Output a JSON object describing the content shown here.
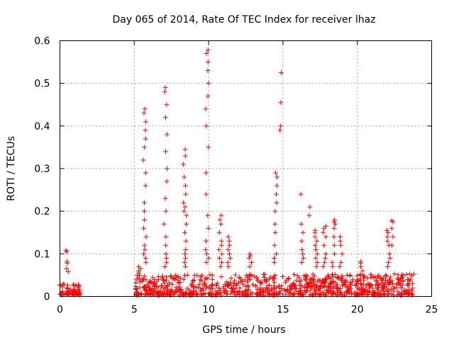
{
  "chart_data": {
    "type": "scatter",
    "title": "Day 065 of 2014, Rate Of TEC Index for receiver lhaz",
    "xlabel": "GPS time / hours",
    "ylabel": "ROTI / TECUs",
    "xlim": [
      0,
      25
    ],
    "ylim": [
      0,
      0.6
    ],
    "grid": true,
    "marker": "+",
    "color": "#ff0000",
    "xticks": [
      "0",
      "5",
      "10",
      "15",
      "20",
      "25"
    ],
    "yticks": [
      "0",
      "0.1",
      "0.2",
      "0.3",
      "0.4",
      "0.5",
      "0.6"
    ],
    "x_tick_values": [
      0,
      5,
      10,
      15,
      20,
      25
    ],
    "y_tick_values": [
      0,
      0.1,
      0.2,
      0.3,
      0.4,
      0.5,
      0.6
    ],
    "background_bands": [
      {
        "x_start": 0.0,
        "x_end": 1.4,
        "y_max": 0.028
      },
      {
        "x_start": 5.1,
        "x_end": 23.8,
        "y_max": 0.05
      }
    ],
    "spikes": [
      {
        "x": 0.5,
        "values": [
          0.108,
          0.105,
          0.082,
          0.078,
          0.065,
          0.058
        ]
      },
      {
        "x": 5.35,
        "values": [
          0.07,
          0.065,
          0.06,
          0.055,
          0.05
        ]
      },
      {
        "x": 5.7,
        "values": [
          0.44,
          0.43,
          0.41,
          0.39,
          0.37,
          0.35,
          0.32,
          0.29,
          0.26,
          0.22,
          0.2,
          0.18,
          0.16,
          0.14,
          0.12,
          0.11,
          0.1,
          0.09,
          0.08
        ]
      },
      {
        "x": 7.1,
        "values": [
          0.49,
          0.48,
          0.45,
          0.42,
          0.38,
          0.34,
          0.3,
          0.27,
          0.23,
          0.2,
          0.17,
          0.14,
          0.12,
          0.1,
          0.09,
          0.08,
          0.07
        ]
      },
      {
        "x": 8.4,
        "values": [
          0.345,
          0.33,
          0.31,
          0.28,
          0.26,
          0.24,
          0.22,
          0.21,
          0.2,
          0.19,
          0.17,
          0.15,
          0.13,
          0.11,
          0.1,
          0.09,
          0.08,
          0.07
        ]
      },
      {
        "x": 9.9,
        "values": [
          0.578,
          0.57,
          0.55,
          0.53,
          0.5,
          0.47,
          0.44,
          0.4,
          0.35,
          0.29,
          0.24,
          0.19,
          0.16,
          0.13,
          0.11,
          0.1,
          0.09,
          0.08
        ]
      },
      {
        "x": 10.8,
        "values": [
          0.19,
          0.18,
          0.17,
          0.15,
          0.13,
          0.12,
          0.11,
          0.1,
          0.09,
          0.08,
          0.07
        ]
      },
      {
        "x": 11.4,
        "values": [
          0.14,
          0.13,
          0.12,
          0.11,
          0.1,
          0.09,
          0.08,
          0.07
        ]
      },
      {
        "x": 12.8,
        "values": [
          0.1,
          0.095,
          0.09,
          0.08,
          0.07
        ]
      },
      {
        "x": 14.5,
        "values": [
          0.29,
          0.28,
          0.26,
          0.24,
          0.22,
          0.2,
          0.17,
          0.15,
          0.12,
          0.1,
          0.09,
          0.08
        ]
      },
      {
        "x": 14.8,
        "values": [
          0.525,
          0.455,
          0.4,
          0.39
        ]
      },
      {
        "x": 16.3,
        "values": [
          0.24,
          0.17,
          0.15,
          0.13,
          0.11,
          0.1,
          0.09,
          0.08
        ]
      },
      {
        "x": 16.8,
        "values": [
          0.21,
          0.19
        ]
      },
      {
        "x": 17.2,
        "values": [
          0.155,
          0.15,
          0.14,
          0.13,
          0.12,
          0.11,
          0.1,
          0.09,
          0.08,
          0.07
        ]
      },
      {
        "x": 17.8,
        "values": [
          0.165,
          0.16,
          0.15,
          0.14,
          0.12,
          0.1,
          0.09,
          0.08,
          0.07
        ]
      },
      {
        "x": 18.4,
        "values": [
          0.18,
          0.175,
          0.17,
          0.16,
          0.14,
          0.12,
          0.1,
          0.08,
          0.07
        ]
      },
      {
        "x": 18.9,
        "values": [
          0.14,
          0.13,
          0.12,
          0.1,
          0.08,
          0.07
        ]
      },
      {
        "x": 20.3,
        "values": [
          0.082,
          0.078,
          0.07,
          0.06,
          0.05
        ]
      },
      {
        "x": 22.1,
        "values": [
          0.155,
          0.15,
          0.14,
          0.13,
          0.12,
          0.1,
          0.09,
          0.08,
          0.07
        ]
      },
      {
        "x": 22.4,
        "values": [
          0.178,
          0.175,
          0.16,
          0.14,
          0.12
        ]
      }
    ]
  }
}
